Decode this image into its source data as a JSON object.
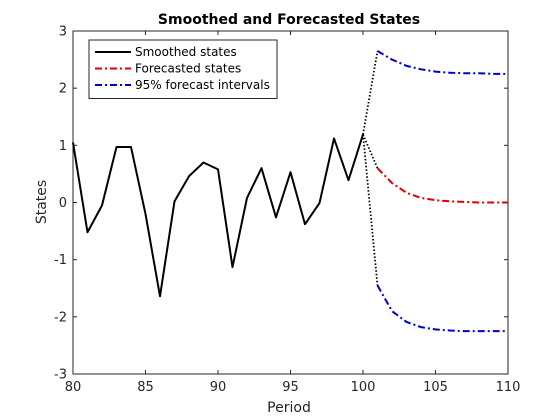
{
  "chart_data": {
    "type": "line",
    "title": "Smoothed and Forecasted States",
    "xlabel": "Period",
    "ylabel": "States",
    "xlim": [
      80,
      110
    ],
    "ylim": [
      -3,
      3
    ],
    "x_ticks": [
      80,
      85,
      90,
      95,
      100,
      105,
      110
    ],
    "y_ticks": [
      -3,
      -2,
      -1,
      0,
      1,
      2,
      3
    ],
    "grid": false,
    "legend_position": "top-left",
    "series": [
      {
        "name": "Smoothed states",
        "color": "#000000",
        "style": "solid",
        "x": [
          80,
          81,
          82,
          83,
          84,
          85,
          86,
          87,
          88,
          89,
          90,
          91,
          92,
          93,
          94,
          95,
          96,
          97,
          98,
          99,
          100
        ],
        "y": [
          1.05,
          -0.52,
          -0.05,
          0.97,
          0.97,
          -0.2,
          -1.64,
          0.02,
          0.46,
          0.7,
          0.58,
          -1.13,
          0.08,
          0.6,
          -0.26,
          0.53,
          -0.38,
          -0.01,
          1.12,
          0.39,
          1.19
        ]
      },
      {
        "name": "Forecasted states",
        "color": "#dd0000",
        "style": "dashdot",
        "x": [
          101,
          102,
          103,
          104,
          105,
          106,
          107,
          108,
          109,
          110
        ],
        "y": [
          0.6,
          0.34,
          0.17,
          0.08,
          0.04,
          0.02,
          0.01,
          0.0,
          0.0,
          0.0
        ]
      },
      {
        "name": "95% forecast intervals",
        "color": "#0000cc",
        "style": "dashdot",
        "x": [
          101,
          102,
          103,
          104,
          105,
          106,
          107,
          108,
          109,
          110
        ],
        "y": [
          2.65,
          2.5,
          2.39,
          2.33,
          2.29,
          2.27,
          2.26,
          2.26,
          2.25,
          2.25
        ]
      },
      {
        "name": "",
        "color": "#0000cc",
        "style": "dashdot",
        "x": [
          101,
          102,
          103,
          104,
          105,
          106,
          107,
          108,
          109,
          110
        ],
        "y": [
          -1.45,
          -1.9,
          -2.09,
          -2.18,
          -2.22,
          -2.24,
          -2.25,
          -2.25,
          -2.25,
          -2.25
        ]
      }
    ],
    "connectors": {
      "color": "#000000",
      "style": "dotted",
      "from": {
        "x": 100,
        "y": 1.19
      },
      "to_y": [
        2.65,
        0.6,
        -1.45
      ],
      "to_x": 101
    }
  }
}
